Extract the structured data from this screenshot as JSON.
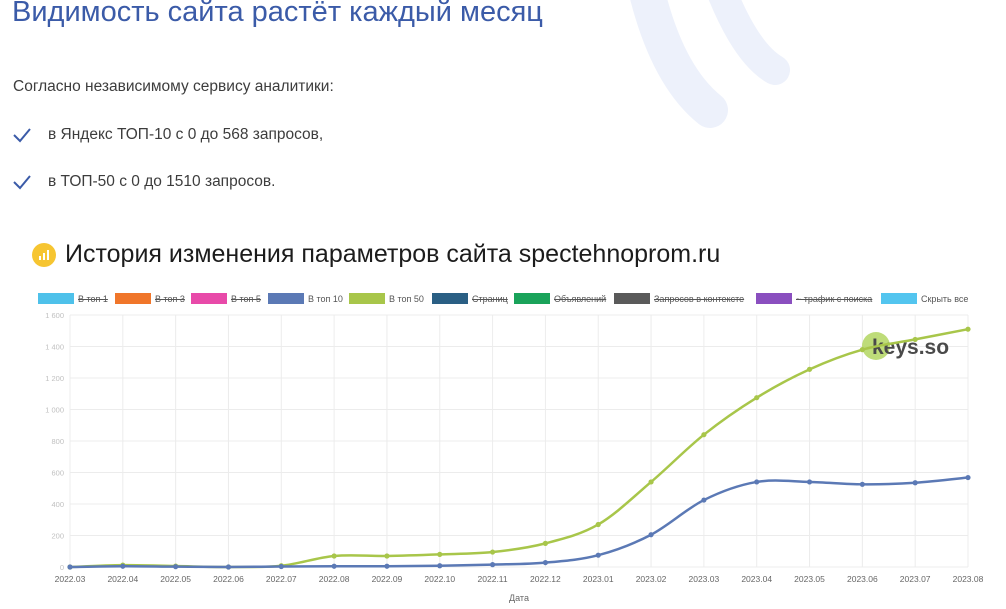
{
  "header": {
    "title": "Видимость сайта растёт каждый месяц",
    "intro": "Согласно независимому сервису аналитики:",
    "bullets": [
      "в Яндекс ТОП-10 с 0 до 568 запросов,",
      "в ТОП-50 с 0 до 1510 запросов."
    ],
    "check_icon": "check-icon",
    "check_color": "#3b5ba8",
    "accent_icon": "bar-chart-icon",
    "accent_color": "#f6c531"
  },
  "section": {
    "title": "История изменения параметров сайта spectehnoprom.ru"
  },
  "legend": [
    {
      "label": "В топ 1",
      "color": "#4ec1ea",
      "active": false
    },
    {
      "label": "В топ 3",
      "color": "#f0762a",
      "active": false
    },
    {
      "label": "В топ 5",
      "color": "#e84aa9",
      "active": false
    },
    {
      "label": "В топ 10",
      "color": "#5b79b5",
      "active": true
    },
    {
      "label": "В топ 50",
      "color": "#a8c64a",
      "active": true
    },
    {
      "label": "Страниц",
      "color": "#2a5f84",
      "active": false
    },
    {
      "label": "Объявлений",
      "color": "#1aa35a",
      "active": false
    },
    {
      "label": "Запросов в контексте",
      "color": "#5a5a5a",
      "active": false
    },
    {
      "label": "~ трафик с поиска",
      "color": "#8a4fbf",
      "active": false
    },
    {
      "label": "Скрыть все",
      "color": "#53c5ef",
      "active": true
    }
  ],
  "watermark": {
    "text": "keys.so",
    "badge_color": "#b7d86a"
  },
  "chart_data": {
    "type": "line",
    "x": [
      "2022.03",
      "2022.04",
      "2022.05",
      "2022.06",
      "2022.07",
      "2022.08",
      "2022.09",
      "2022.10",
      "2022.11",
      "2022.12",
      "2023.01",
      "2023.02",
      "2023.03",
      "2023.04",
      "2023.05",
      "2023.06",
      "2023.07",
      "2023.08"
    ],
    "xlabel": "Дата",
    "ylabel": "",
    "ylim": [
      0,
      1600
    ],
    "yticks": [
      "0",
      "200",
      "400",
      "600",
      "800",
      "1 000",
      "1 200",
      "1 400",
      "1 600"
    ],
    "grid": true,
    "series": [
      {
        "name": "В топ 50",
        "color": "#a8c64a",
        "values": [
          0,
          12,
          6,
          0,
          8,
          70,
          70,
          80,
          95,
          150,
          270,
          540,
          840,
          1075,
          1255,
          1380,
          1445,
          1510
        ]
      },
      {
        "name": "В топ 10",
        "color": "#5b79b5",
        "values": [
          0,
          5,
          2,
          0,
          3,
          5,
          5,
          8,
          15,
          28,
          75,
          205,
          425,
          540,
          540,
          525,
          535,
          568
        ]
      }
    ]
  }
}
